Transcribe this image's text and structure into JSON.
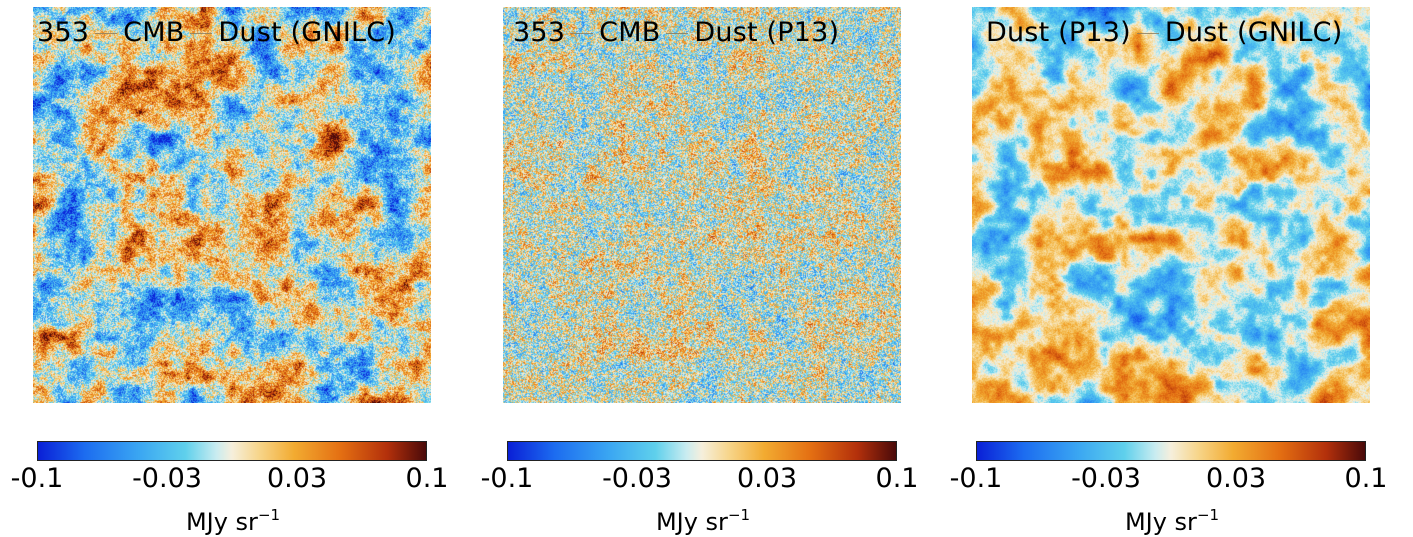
{
  "panels": [
    {
      "title_parts": [
        "353",
        "CMB",
        "Dust (GNILC)"
      ],
      "colorbar": {
        "ticks": [
          "-0.1",
          "-0.03",
          "0.03",
          "0.1"
        ],
        "unit": "MJy sr",
        "unit_exp": "−1"
      },
      "colors": {
        "cold": "#1c6cf0",
        "warm": "#e46f12"
      },
      "texture": "coarse"
    },
    {
      "title_parts": [
        "353",
        "CMB",
        "Dust (P13)"
      ],
      "colorbar": {
        "ticks": [
          "-0.1",
          "-0.03",
          "0.03",
          "0.1"
        ],
        "unit": "MJy sr",
        "unit_exp": "−1"
      },
      "colors": {
        "cold": "#1c6cf0",
        "warm": "#e46f12"
      },
      "texture": "fine"
    },
    {
      "title_parts": [
        "Dust (P13)",
        "Dust (GNILC)"
      ],
      "colorbar": {
        "ticks": [
          "-0.1",
          "-0.03",
          "0.03",
          "0.1"
        ],
        "unit": "MJy sr",
        "unit_exp": "−1"
      },
      "colors": {
        "cold": "#3aa6f2",
        "warm": "#f2ab31"
      },
      "texture": "smooth"
    }
  ]
}
